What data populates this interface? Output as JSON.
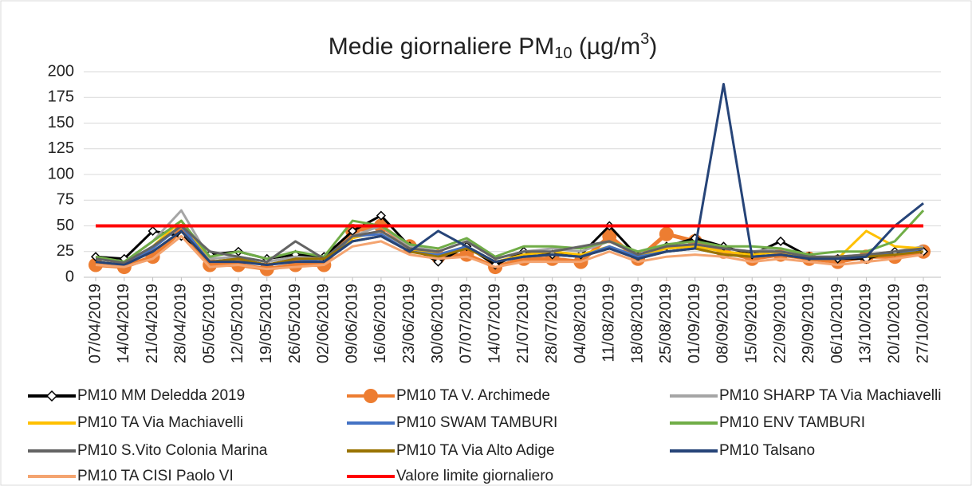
{
  "chart_data": {
    "type": "line",
    "title": "Medie giornaliere PM",
    "title_sub": "10",
    "title_mid": " (µg/m",
    "title_sup": "3",
    "title_end": ")",
    "categories": [
      "07/04/2019",
      "14/04/2019",
      "21/04/2019",
      "28/04/2019",
      "05/05/2019",
      "12/05/2019",
      "19/05/2019",
      "26/05/2019",
      "02/06/2019",
      "09/06/2019",
      "16/06/2019",
      "23/06/2019",
      "30/06/2019",
      "07/07/2019",
      "14/07/2019",
      "21/07/2019",
      "28/07/2019",
      "04/08/2019",
      "11/08/2019",
      "18/08/2019",
      "25/08/2019",
      "01/09/2019",
      "08/09/2019",
      "15/09/2019",
      "22/09/2019",
      "29/09/2019",
      "06/10/2019",
      "13/10/2019",
      "20/10/2019",
      "27/10/2019"
    ],
    "ylim": [
      0,
      200
    ],
    "yticks": [
      0,
      25,
      50,
      75,
      100,
      125,
      150,
      175,
      200
    ],
    "grid": true,
    "legend": "bottom",
    "series": [
      {
        "name": "PM10 MM Deledda 2019",
        "color": "#000000",
        "marker": "diamond",
        "values": [
          20,
          18,
          45,
          40,
          22,
          25,
          18,
          22,
          20,
          45,
          60,
          30,
          15,
          30,
          12,
          25,
          22,
          22,
          50,
          20,
          30,
          38,
          30,
          22,
          35,
          20,
          18,
          18,
          25,
          25
        ]
      },
      {
        "name": "PM10 TA V. Archimede",
        "color": "#ed7d31",
        "marker": "circle",
        "values": [
          12,
          10,
          20,
          45,
          12,
          12,
          8,
          12,
          12,
          45,
          50,
          30,
          20,
          22,
          10,
          18,
          18,
          15,
          40,
          18,
          42,
          35,
          25,
          18,
          22,
          18,
          15,
          20,
          20,
          25
        ]
      },
      {
        "name": "PM10 SHARP TA Via Machiavelli",
        "color": "#a5a5a5",
        "values": [
          18,
          15,
          35,
          65,
          18,
          20,
          15,
          20,
          18,
          40,
          50,
          30,
          25,
          35,
          18,
          25,
          28,
          25,
          35,
          22,
          30,
          32,
          28,
          25,
          28,
          20,
          20,
          22,
          25,
          30
        ]
      },
      {
        "name": "PM10 TA Via Machiavelli",
        "color": "#ffc000",
        "values": [
          15,
          12,
          30,
          55,
          15,
          18,
          12,
          18,
          15,
          38,
          45,
          28,
          22,
          30,
          15,
          22,
          25,
          22,
          30,
          20,
          28,
          30,
          25,
          22,
          25,
          18,
          18,
          45,
          30,
          28
        ]
      },
      {
        "name": "PM10 SWAM TAMBURI",
        "color": "#4472c4",
        "values": [
          15,
          12,
          28,
          50,
          15,
          18,
          12,
          18,
          15,
          40,
          42,
          25,
          22,
          30,
          15,
          20,
          22,
          20,
          30,
          20,
          25,
          28,
          22,
          20,
          22,
          18,
          18,
          22,
          22,
          28
        ]
      },
      {
        "name": "PM10 ENV TAMBURI",
        "color": "#70ad47",
        "values": [
          20,
          15,
          35,
          55,
          20,
          25,
          18,
          25,
          20,
          55,
          50,
          32,
          28,
          38,
          20,
          30,
          30,
          28,
          35,
          25,
          32,
          35,
          30,
          30,
          28,
          22,
          25,
          25,
          35,
          65
        ]
      },
      {
        "name": "PM10 S.Vito Colonia Marina",
        "color": "#636363",
        "values": [
          18,
          14,
          30,
          50,
          25,
          20,
          15,
          35,
          18,
          40,
          45,
          28,
          25,
          35,
          18,
          25,
          25,
          30,
          35,
          22,
          30,
          32,
          28,
          25,
          25,
          20,
          20,
          22,
          25,
          28
        ]
      },
      {
        "name": "PM10 TA Via Alto Adige",
        "color": "#997300",
        "values": [
          15,
          12,
          25,
          45,
          15,
          18,
          12,
          18,
          18,
          35,
          40,
          25,
          20,
          28,
          15,
          20,
          22,
          20,
          28,
          18,
          25,
          28,
          22,
          20,
          22,
          18,
          18,
          20,
          22,
          25
        ]
      },
      {
        "name": "PM10 Talsano",
        "color": "#264478",
        "values": [
          15,
          12,
          25,
          45,
          15,
          15,
          12,
          15,
          15,
          35,
          40,
          25,
          45,
          30,
          15,
          20,
          22,
          20,
          28,
          18,
          25,
          28,
          188,
          20,
          22,
          18,
          18,
          20,
          50,
          72
        ]
      },
      {
        "name": "PM10 TA CISI Paolo VI",
        "color": "#f4a470",
        "values": [
          12,
          10,
          18,
          40,
          10,
          12,
          8,
          10,
          12,
          30,
          35,
          22,
          18,
          20,
          10,
          15,
          15,
          15,
          25,
          15,
          20,
          22,
          20,
          15,
          18,
          15,
          12,
          15,
          18,
          22
        ]
      },
      {
        "name": "Valore limite giornaliero",
        "color": "#ff0000",
        "values": [
          50,
          50,
          50,
          50,
          50,
          50,
          50,
          50,
          50,
          50,
          50,
          50,
          50,
          50,
          50,
          50,
          50,
          50,
          50,
          50,
          50,
          50,
          50,
          50,
          50,
          50,
          50,
          50,
          50,
          50
        ]
      }
    ]
  }
}
